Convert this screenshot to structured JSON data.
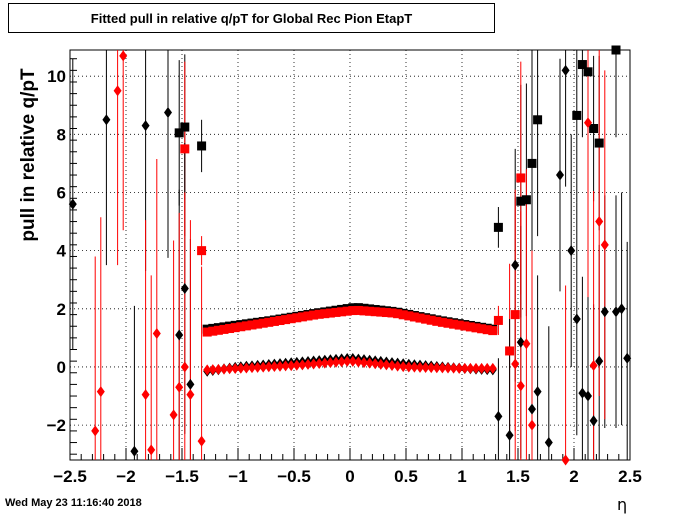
{
  "chart_data": {
    "type": "scatter",
    "title": "Fitted pull in relative q/pT for Global Rec Pion EtapT",
    "xlabel": "η",
    "ylabel": "pull in relative q/pT",
    "xlim": [
      -2.5,
      2.5
    ],
    "ylim": [
      -3.2,
      10.9
    ],
    "x_ticks": [
      "−2.5",
      "−2",
      "−1.5",
      "−1",
      "−0.5",
      "0",
      "0.5",
      "1",
      "1.5",
      "2",
      "2.5"
    ],
    "x_tick_values": [
      -2.5,
      -2,
      -1.5,
      -1,
      -0.5,
      0,
      0.5,
      1,
      1.5,
      2,
      2.5
    ],
    "y_ticks": [
      "−2",
      "0",
      "2",
      "4",
      "6",
      "8",
      "10"
    ],
    "y_tick_values": [
      -2,
      0,
      2,
      4,
      6,
      8,
      10
    ],
    "grid": true,
    "series": [
      {
        "marker": "square",
        "color": "#000000",
        "points": [
          {
            "x": -1.525,
            "y": 8.05,
            "err": 2.5
          },
          {
            "x": -1.475,
            "y": 8.25,
            "err": 2.5
          },
          {
            "x": -1.325,
            "y": 7.6,
            "err": 0.9
          },
          {
            "x": 1.325,
            "y": 4.8,
            "err": 0.7
          },
          {
            "x": 1.525,
            "y": 5.7,
            "err": 4.0
          },
          {
            "x": 1.575,
            "y": 5.75,
            "err": 4.0
          },
          {
            "x": 1.625,
            "y": 7.0,
            "err": 5.0
          },
          {
            "x": 1.675,
            "y": 8.5,
            "err": 4.0
          },
          {
            "x": 2.025,
            "y": 8.65,
            "err": 3.0
          },
          {
            "x": 2.075,
            "y": 10.4,
            "err": 2.5
          },
          {
            "x": 2.125,
            "y": 10.15,
            "err": 3.0
          },
          {
            "x": 2.175,
            "y": 8.2,
            "err": 2.5
          },
          {
            "x": 2.225,
            "y": 7.7,
            "err": 3.0
          },
          {
            "x": 2.375,
            "y": 10.9,
            "err": 3.0
          }
        ],
        "band": {
          "x_from": -1.275,
          "x_to": 1.275,
          "y_at": [
            [
              -1.275,
              1.3
            ],
            [
              -0.7,
              1.6
            ],
            [
              -0.3,
              1.85
            ],
            [
              0.05,
              2.05
            ],
            [
              0.4,
              1.9
            ],
            [
              0.8,
              1.6
            ],
            [
              1.275,
              1.3
            ]
          ]
        }
      },
      {
        "marker": "square",
        "color": "#ff0000",
        "points": [
          {
            "x": -1.475,
            "y": 7.5,
            "err": 3.0
          },
          {
            "x": -1.325,
            "y": 4.0,
            "err": 0.5
          },
          {
            "x": 1.325,
            "y": 1.6,
            "err": 0.5
          },
          {
            "x": 1.425,
            "y": 0.55,
            "err": 3.0
          },
          {
            "x": 1.475,
            "y": 1.8,
            "err": 4.0
          },
          {
            "x": 1.525,
            "y": 6.5,
            "err": 4.0
          }
        ],
        "band": {
          "x_from": -1.275,
          "x_to": 1.275,
          "y_at": [
            [
              -1.275,
              1.2
            ],
            [
              -0.7,
              1.55
            ],
            [
              -0.3,
              1.8
            ],
            [
              0.05,
              1.95
            ],
            [
              0.4,
              1.85
            ],
            [
              0.8,
              1.55
            ],
            [
              1.275,
              1.25
            ]
          ]
        }
      },
      {
        "marker": "diamond",
        "color": "#000000",
        "points": [
          {
            "x": -2.475,
            "y": 5.6,
            "err": 5.0
          },
          {
            "x": -2.175,
            "y": 8.5,
            "err": 5.0
          },
          {
            "x": -1.925,
            "y": -2.9,
            "err": 5.0
          },
          {
            "x": -1.825,
            "y": 8.3,
            "err": 5.0
          },
          {
            "x": -1.625,
            "y": 8.75,
            "err": 5.0
          },
          {
            "x": -1.525,
            "y": 1.1,
            "err": 5.0
          },
          {
            "x": -1.475,
            "y": 2.7,
            "err": 5.0
          },
          {
            "x": -1.425,
            "y": -0.6,
            "err": 5.0
          },
          {
            "x": 1.325,
            "y": -1.7,
            "err": 2.0
          },
          {
            "x": 1.425,
            "y": -2.35,
            "err": 4.0
          },
          {
            "x": 1.475,
            "y": 3.5,
            "err": 4.0
          },
          {
            "x": 1.525,
            "y": 0.85,
            "err": 4.0
          },
          {
            "x": 1.625,
            "y": -1.45,
            "err": 4.0
          },
          {
            "x": 1.675,
            "y": -0.85,
            "err": 4.0
          },
          {
            "x": 1.775,
            "y": -2.6,
            "err": 4.0
          },
          {
            "x": 1.875,
            "y": 6.6,
            "err": 4.0
          },
          {
            "x": 1.925,
            "y": 10.2,
            "err": 4.0
          },
          {
            "x": 1.975,
            "y": 4.0,
            "err": 4.0
          },
          {
            "x": 2.025,
            "y": 1.65,
            "err": 4.0
          },
          {
            "x": 2.075,
            "y": -0.9,
            "err": 4.0
          },
          {
            "x": 2.125,
            "y": -1.0,
            "err": 4.0
          },
          {
            "x": 2.175,
            "y": -1.85,
            "err": 4.0
          },
          {
            "x": 2.225,
            "y": 0.2,
            "err": 4.0
          },
          {
            "x": 2.275,
            "y": 1.9,
            "err": 4.0
          },
          {
            "x": 2.375,
            "y": 1.9,
            "err": 4.0
          },
          {
            "x": 2.425,
            "y": 2.0,
            "err": 4.0
          },
          {
            "x": 2.475,
            "y": 0.3,
            "err": 4.0
          }
        ],
        "band": {
          "x_from": -1.275,
          "x_to": 1.275,
          "y_at": [
            [
              -1.275,
              -0.15
            ],
            [
              -1.0,
              0.0
            ],
            [
              -0.5,
              0.15
            ],
            [
              0.0,
              0.3
            ],
            [
              0.5,
              0.1
            ],
            [
              1.0,
              -0.05
            ],
            [
              1.275,
              -0.1
            ]
          ]
        }
      },
      {
        "marker": "diamond",
        "color": "#ff0000",
        "points": [
          {
            "x": -2.275,
            "y": -2.2,
            "err": 6.0
          },
          {
            "x": -2.225,
            "y": -0.85,
            "err": 6.0
          },
          {
            "x": -2.075,
            "y": 9.5,
            "err": 6.0
          },
          {
            "x": -2.025,
            "y": 10.7,
            "err": 6.0
          },
          {
            "x": -1.825,
            "y": -0.95,
            "err": 6.0
          },
          {
            "x": -1.775,
            "y": -2.85,
            "err": 6.0
          },
          {
            "x": -1.725,
            "y": 1.15,
            "err": 6.0
          },
          {
            "x": -1.575,
            "y": -1.65,
            "err": 6.0
          },
          {
            "x": -1.525,
            "y": -0.7,
            "err": 6.0
          },
          {
            "x": -1.475,
            "y": 0.0,
            "err": 6.0
          },
          {
            "x": -1.425,
            "y": -0.95,
            "err": 6.0
          },
          {
            "x": -1.325,
            "y": -2.55,
            "err": 6.0
          },
          {
            "x": 1.475,
            "y": 0.1,
            "err": 6.0
          },
          {
            "x": 1.525,
            "y": -0.65,
            "err": 6.0
          },
          {
            "x": 1.575,
            "y": 0.8,
            "err": 6.0
          },
          {
            "x": 1.625,
            "y": -2.0,
            "err": 6.0
          },
          {
            "x": 1.925,
            "y": -3.2,
            "err": 6.0
          },
          {
            "x": 2.125,
            "y": 8.4,
            "err": 6.0
          },
          {
            "x": 2.175,
            "y": 0.05,
            "err": 6.0
          },
          {
            "x": 2.225,
            "y": 5.0,
            "err": 6.0
          },
          {
            "x": 2.275,
            "y": 4.2,
            "err": 6.0
          }
        ],
        "band": {
          "x_from": -1.275,
          "x_to": 1.275,
          "y_at": [
            [
              -1.275,
              -0.1
            ],
            [
              -1.0,
              -0.05
            ],
            [
              -0.5,
              0.05
            ],
            [
              0.0,
              0.2
            ],
            [
              0.5,
              0.0
            ],
            [
              1.0,
              -0.05
            ],
            [
              1.275,
              -0.05
            ]
          ]
        }
      }
    ]
  },
  "footer": {
    "timestamp": "Wed May 23 11:16:40 2018"
  }
}
